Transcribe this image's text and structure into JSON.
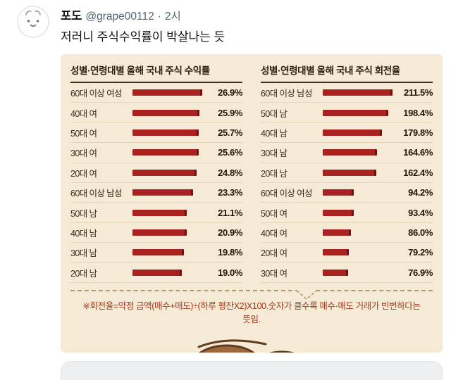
{
  "tweet": {
    "display_name": "포도",
    "handle": "@grape00112",
    "dot": "·",
    "timestamp": "2시",
    "body": "저러니 주식수익률이 박살나는 듯"
  },
  "chart_data": [
    {
      "type": "bar",
      "title": "성별·연령대별 올해 국내 주식 수익률",
      "categories": [
        "60대 이상 여성",
        "40대 여",
        "50대 여",
        "30대 여",
        "20대 여",
        "60대 이상 남성",
        "50대 남",
        "40대 남",
        "30대 남",
        "20대 남"
      ],
      "values": [
        26.9,
        25.9,
        25.7,
        25.6,
        24.8,
        23.3,
        21.1,
        20.9,
        19.8,
        19.0
      ],
      "unit": "%",
      "xlim": [
        0,
        27.5
      ],
      "grid": false,
      "legend": "none",
      "bar_color": "#a82320"
    },
    {
      "type": "bar",
      "title": "성별·연령대별 올해 국내 주식 회전율",
      "categories": [
        "60대 이상 남성",
        "50대 남",
        "40대 남",
        "30대 남",
        "20대 남",
        "60대 이상 여성",
        "50대 여",
        "40대 여",
        "20대 여",
        "30대 여"
      ],
      "values": [
        211.5,
        198.4,
        179.8,
        164.6,
        162.4,
        94.2,
        93.4,
        86.0,
        79.2,
        76.9
      ],
      "unit": "%",
      "xlim": [
        0,
        215
      ],
      "grid": false,
      "legend": "none",
      "bar_color": "#a82320"
    }
  ],
  "footnote": "※회전율=약정 금액(매수+매도)÷(하루 평잔X2)X100.숫자가 클수록 매수·매도 거래가 빈번하다는 뜻임.",
  "icons": {
    "avatar": "hand-drawn-animal-face-doodle",
    "illustration": "hand-drawn-brown-acorns-partial"
  },
  "colors": {
    "card_background": "#f4ead6",
    "bar_red": "#a82320",
    "footnote_red": "#a03a1c",
    "handle_gray": "#536471",
    "dashed_line": "#b5976e"
  }
}
